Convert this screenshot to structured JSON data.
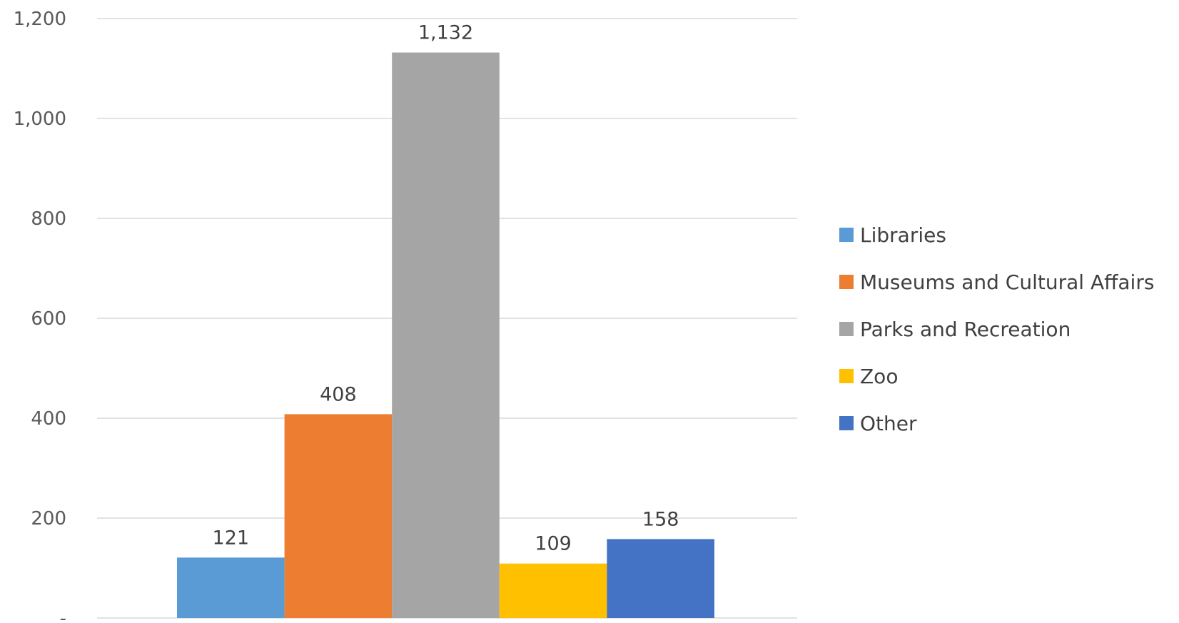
{
  "chart_data": {
    "type": "bar",
    "categories": [
      ""
    ],
    "series": [
      {
        "name": "Libraries",
        "values": [
          121
        ],
        "color": "#5b9bd5",
        "label": "121"
      },
      {
        "name": "Museums and Cultural Affairs",
        "values": [
          408
        ],
        "color": "#ed7d31",
        "label": "408"
      },
      {
        "name": "Parks and Recreation",
        "values": [
          1132
        ],
        "color": "#a5a5a5",
        "label": "1,132"
      },
      {
        "name": "Zoo",
        "values": [
          109
        ],
        "color": "#ffc000",
        "label": "109"
      },
      {
        "name": "Other",
        "values": [
          158
        ],
        "color": "#4472c4",
        "label": "158"
      }
    ],
    "title": "",
    "xlabel": "",
    "ylabel": "",
    "ylim": [
      0,
      1200
    ],
    "yticks": [
      {
        "value": 0,
        "label": "-"
      },
      {
        "value": 200,
        "label": "200"
      },
      {
        "value": 400,
        "label": "400"
      },
      {
        "value": 600,
        "label": "600"
      },
      {
        "value": 800,
        "label": "800"
      },
      {
        "value": 1000,
        "label": "1,000"
      },
      {
        "value": 1200,
        "label": "1,200"
      }
    ],
    "grid": true,
    "legend_position": "right",
    "gridline_color": "#d9d9d9"
  }
}
